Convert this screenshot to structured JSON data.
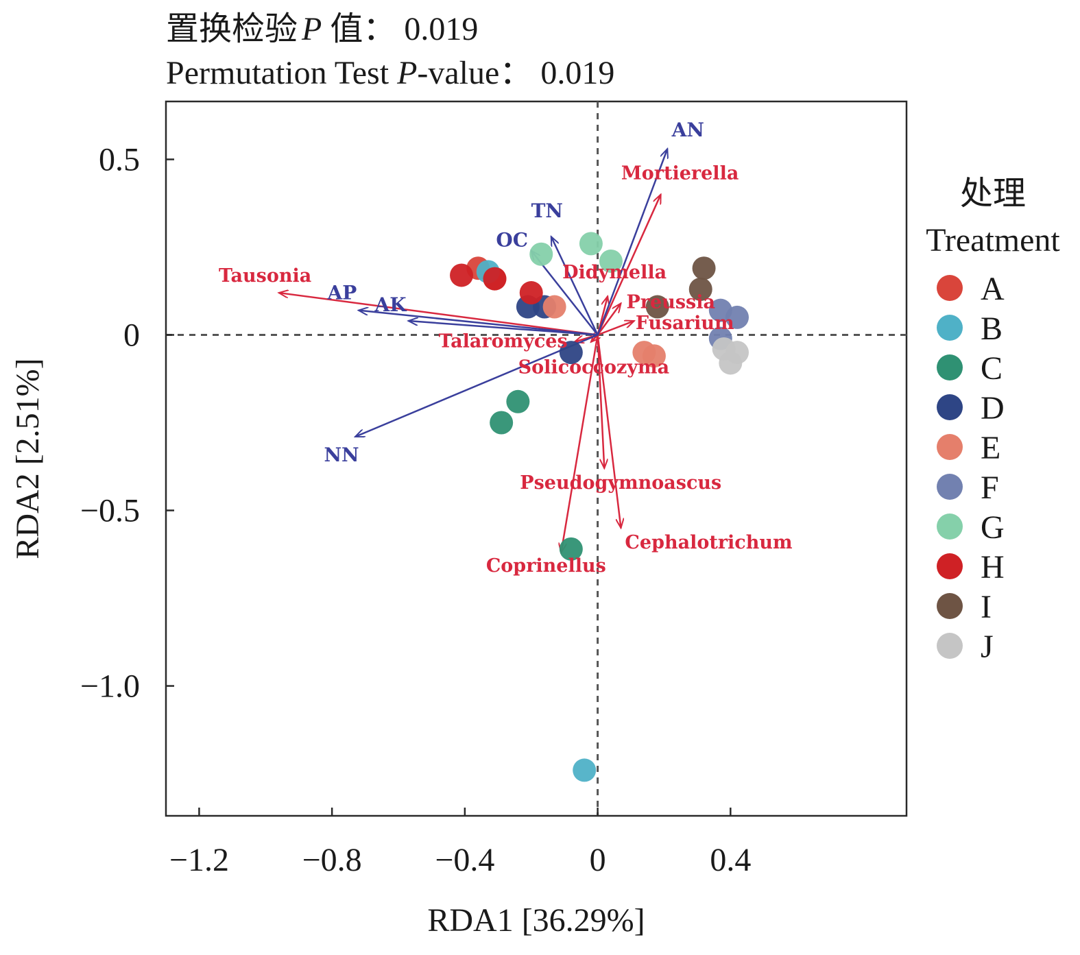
{
  "chart_data": {
    "type": "scatter",
    "subtype": "rda-biplot",
    "title": "置换检验 P 值：  0.019",
    "title_prefix": "置换检验",
    "title_p": "P",
    "title_suffix": " 值：  0.019",
    "subtitle": "Permutation Test P-value：  0.019",
    "subtitle_prefix": "Permutation Test ",
    "subtitle_p": "P",
    "subtitle_suffix": "-value：  0.019",
    "xlabel": "RDA1 [36.29%]",
    "ylabel": "RDA2 [2.51%]",
    "xlim": [
      -1.3,
      0.93
    ],
    "ylim": [
      -1.37,
      0.665
    ],
    "x_ticks": [
      -1.2,
      -0.8,
      -0.4,
      0,
      0.4
    ],
    "x_tick_labels": [
      "−1.2",
      "−0.8",
      "−0.4",
      "0",
      "0.4"
    ],
    "y_ticks": [
      0.5,
      0,
      -0.5,
      -1.0
    ],
    "y_tick_labels": [
      "0.5",
      "0",
      "−0.5",
      "−1.0"
    ],
    "grid": false,
    "reference_lines": "dashed at x=0 and y=0",
    "legend_position": "right",
    "legend_title_cn": "处理",
    "legend_title_en": "Treatment",
    "groups": [
      {
        "name": "A",
        "color": "#d9453b",
        "points": [
          [
            -0.36,
            0.19
          ],
          [
            -0.31,
            0.16
          ]
        ]
      },
      {
        "name": "B",
        "color": "#4fb1c7",
        "points": [
          [
            -0.33,
            0.18
          ],
          [
            -0.04,
            -1.24
          ]
        ]
      },
      {
        "name": "C",
        "color": "#2f9173",
        "points": [
          [
            -0.24,
            -0.19
          ],
          [
            -0.29,
            -0.25
          ],
          [
            -0.08,
            -0.61
          ]
        ]
      },
      {
        "name": "D",
        "color": "#2e4585",
        "points": [
          [
            -0.21,
            0.08
          ],
          [
            -0.16,
            0.08
          ],
          [
            -0.08,
            -0.05
          ]
        ]
      },
      {
        "name": "E",
        "color": "#e57f6b",
        "points": [
          [
            -0.13,
            0.08
          ],
          [
            0.14,
            -0.05
          ],
          [
            0.17,
            -0.06
          ]
        ]
      },
      {
        "name": "F",
        "color": "#7281b0",
        "points": [
          [
            0.37,
            0.07
          ],
          [
            0.42,
            0.05
          ],
          [
            0.37,
            -0.01
          ]
        ]
      },
      {
        "name": "G",
        "color": "#85d0aa",
        "points": [
          [
            -0.17,
            0.23
          ],
          [
            -0.02,
            0.26
          ],
          [
            0.04,
            0.21
          ]
        ]
      },
      {
        "name": "H",
        "color": "#cf2125",
        "points": [
          [
            -0.41,
            0.17
          ],
          [
            -0.31,
            0.16
          ],
          [
            -0.2,
            0.12
          ]
        ]
      },
      {
        "name": "I",
        "color": "#6e5444",
        "points": [
          [
            0.32,
            0.19
          ],
          [
            0.31,
            0.13
          ],
          [
            0.18,
            0.08
          ]
        ]
      },
      {
        "name": "J",
        "color": "#c5c5c5",
        "points": [
          [
            0.42,
            -0.05
          ],
          [
            0.4,
            -0.08
          ],
          [
            0.38,
            -0.04
          ]
        ]
      }
    ],
    "env_vectors": [
      {
        "label": "AN",
        "end": [
          0.21,
          0.53
        ]
      },
      {
        "label": "TN",
        "end": [
          -0.14,
          0.28
        ]
      },
      {
        "label": "OC",
        "end": [
          -0.2,
          0.24
        ]
      },
      {
        "label": "AP",
        "end": [
          -0.72,
          0.07
        ]
      },
      {
        "label": "AK",
        "end": [
          -0.57,
          0.04
        ]
      },
      {
        "label": "NN",
        "end": [
          -0.73,
          -0.29
        ]
      }
    ],
    "species_vectors": [
      {
        "label": "Mortierella",
        "end": [
          0.19,
          0.4
        ]
      },
      {
        "label": "Tausonia",
        "end": [
          -0.96,
          0.12
        ]
      },
      {
        "label": "Didymella",
        "end": [
          0.03,
          0.11
        ]
      },
      {
        "label": "Preussia",
        "end": [
          0.07,
          0.09
        ]
      },
      {
        "label": "Fusarium",
        "end": [
          0.11,
          0.04
        ]
      },
      {
        "label": "Talaromyces",
        "end": [
          -0.07,
          -0.02
        ]
      },
      {
        "label": "Solicoccozyma",
        "end": [
          -0.02,
          -0.02
        ]
      },
      {
        "label": "Pseudogymnoascus",
        "end": [
          0.02,
          -0.38
        ]
      },
      {
        "label": "Cephalotrichum",
        "end": [
          0.07,
          -0.55
        ]
      },
      {
        "label": "Coprinellus",
        "end": [
          -0.11,
          -0.62
        ]
      }
    ],
    "env_color": "#3a3f9c",
    "species_color": "#d8283f"
  }
}
